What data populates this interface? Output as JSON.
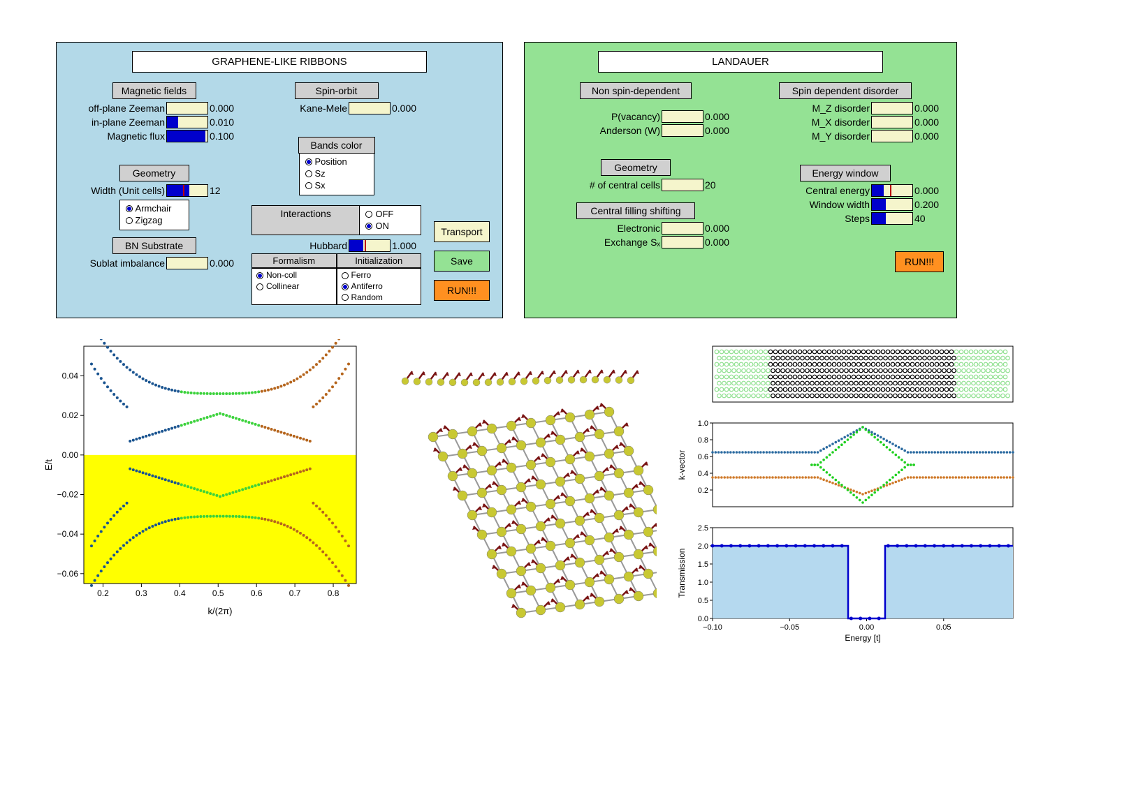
{
  "left_panel": {
    "title": "GRAPHENE-LIKE RIBBONS",
    "magnetic_fields": {
      "header": "Magnetic fields",
      "off_plane": {
        "label": "off-plane Zeeman",
        "value": "0.000",
        "fill": 0
      },
      "in_plane": {
        "label": "in-plane Zeeman",
        "value": "0.010",
        "fill": 0.28
      },
      "flux": {
        "label": "Magnetic flux",
        "value": "0.100",
        "fill": 0.95
      }
    },
    "spin_orbit": {
      "header": "Spin-orbit",
      "kane_mele": {
        "label": "Kane-Mele",
        "value": "0.000",
        "fill": 0
      }
    },
    "bands_color": {
      "header": "Bands color",
      "options": [
        "Position",
        "Sz",
        "Sx"
      ],
      "selected": "Position"
    },
    "geometry": {
      "header": "Geometry",
      "width": {
        "label": "Width (Unit cells)",
        "value": "12",
        "fill": 0.55,
        "mark": 0.4
      },
      "options": [
        "Armchair",
        "Zigzag"
      ],
      "selected": "Armchair"
    },
    "interactions": {
      "header": "Interactions",
      "onoff_options": [
        "OFF",
        "ON"
      ],
      "onoff_selected": "ON",
      "hubbard": {
        "label": "Hubbard",
        "value": "1.000",
        "fill": 0.35,
        "mark": 0.38
      },
      "formalism_header": "Formalism",
      "init_header": "Initialization",
      "formalism_options": [
        "Non-coll",
        "Collinear"
      ],
      "formalism_selected": "Non-coll",
      "init_options": [
        "Ferro",
        "Antiferro",
        "Random"
      ],
      "init_selected": "Antiferro"
    },
    "bn": {
      "header": "BN Substrate",
      "sublat": {
        "label": "Sublat imbalance",
        "value": "0.000",
        "fill": 0
      }
    },
    "buttons": {
      "transport": "Transport",
      "save": "Save",
      "run": "RUN!!!"
    }
  },
  "right_panel": {
    "title": "LANDAUER",
    "non_spin": {
      "header": "Non spin-dependent",
      "pvac": {
        "label": "P(vacancy)",
        "value": "0.000",
        "fill": 0
      },
      "anderson": {
        "label": "Anderson (W)",
        "value": "0.000",
        "fill": 0
      }
    },
    "spin_dep": {
      "header": "Spin dependent disorder",
      "mz": {
        "label": "M_Z disorder",
        "value": "0.000",
        "fill": 0
      },
      "mx": {
        "label": "M_X disorder",
        "value": "0.000",
        "fill": 0
      },
      "my": {
        "label": "M_Y disorder",
        "value": "0.000",
        "fill": 0
      }
    },
    "geometry": {
      "header": "Geometry",
      "ncells": {
        "label": "# of central cells",
        "value": "20",
        "fill": 0
      }
    },
    "filling": {
      "header": "Central filling shifting",
      "electronic": {
        "label": "Electronic",
        "value": "0.000",
        "fill": 0
      },
      "exchange": {
        "label": "Exchange Sₓ",
        "value": "0.000",
        "fill": 0
      }
    },
    "energy": {
      "header": "Energy window",
      "central": {
        "label": "Central energy",
        "value": "0.000",
        "fill": 0.3,
        "mark": 0.45
      },
      "width": {
        "label": "Window width",
        "value": "0.200",
        "fill": 0.35
      },
      "steps": {
        "label": "Steps",
        "value": "40",
        "fill": 0.35
      }
    },
    "run": "RUN!!!"
  },
  "band_chart": {
    "xlabel": "k/(2π)",
    "ylabel": "E/t",
    "xticks": [
      "0.2",
      "0.3",
      "0.4",
      "0.5",
      "0.6",
      "0.7",
      "0.8"
    ],
    "yticks": [
      "0.04",
      "0.02",
      "0.00",
      "−0.02",
      "−0.04",
      "−0.06"
    ],
    "ylim": [
      -0.065,
      0.055
    ],
    "xlim": [
      0.15,
      0.86
    ],
    "lower_bg": "#ffff00",
    "colors": {
      "left": "#1a5490",
      "mid": "#3bd23b",
      "right": "#b5651d"
    },
    "curves": {
      "upper_top_y": 0.031,
      "upper_bot_y": 0.011,
      "lower_top_y": -0.011,
      "lower_bot_y": -0.031
    }
  },
  "lattice": {
    "atom_color": "#c8c832",
    "arrow_color": "#7a1515"
  },
  "right_charts": {
    "ribbon": {
      "lead_color": "#8fe08f",
      "center_color": "#000000"
    },
    "kvec": {
      "ylabel": "k-vector",
      "yticks": [
        "0.2",
        "0.4",
        "0.6",
        "0.8",
        "1.0"
      ],
      "colors": {
        "blue": "#2a6aa0",
        "green": "#1fcf1f",
        "orange": "#cf7a2a"
      }
    },
    "trans": {
      "ylabel": "Transmission",
      "xlabel": "Energy [t]",
      "yticks": [
        "0.0",
        "0.5",
        "1.0",
        "1.5",
        "2.0",
        "2.5"
      ],
      "xticks": [
        "−0.10",
        "−0.05",
        "0.00",
        "0.05"
      ],
      "fill": "#b5d9ef",
      "line": "#0000cc",
      "plateau": 2.0,
      "gap": [
        -0.012,
        0.012
      ]
    }
  }
}
